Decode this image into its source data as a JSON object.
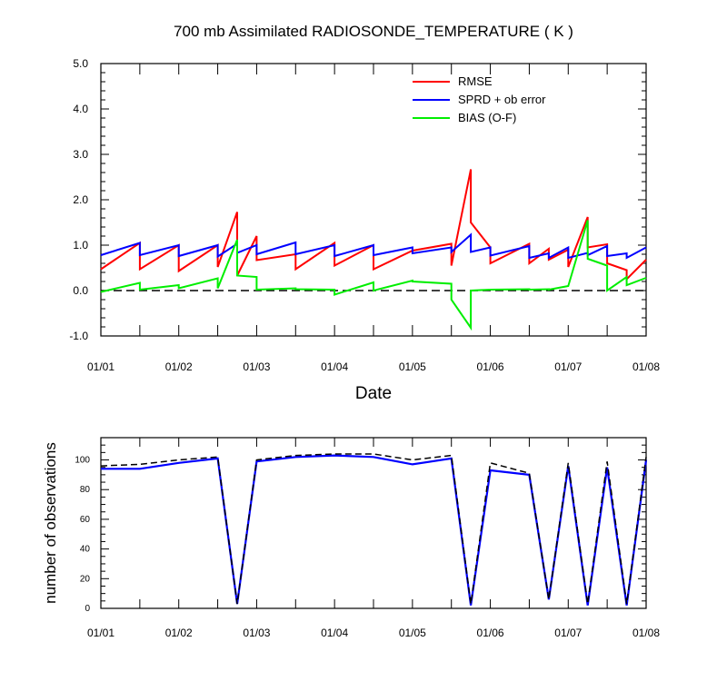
{
  "title": "700 mb Assimilated RADIOSONDE_TEMPERATURE ( K )",
  "colors": {
    "rmse": "#ff0000",
    "sprd": "#0000ff",
    "bias": "#00ee00",
    "ref": "#000000",
    "obs_possible": "#000000",
    "obs_used": "#0000ff"
  },
  "chart_data": [
    {
      "type": "line",
      "xlabel": "Date",
      "ylabel": "",
      "x_tick_labels": [
        "01/01",
        "01/02",
        "01/03",
        "01/04",
        "01/05",
        "01/06",
        "01/07",
        "01/08"
      ],
      "x_range": [
        0,
        7
      ],
      "ylim": [
        -1.0,
        5.0
      ],
      "y_tick_labels": [
        "-1.0",
        "0.0",
        "1.0",
        "2.0",
        "3.0",
        "4.0",
        "5.0"
      ],
      "legend_position": "top-right",
      "x": [
        0,
        0.5,
        0.5,
        1,
        1,
        1.5,
        1.5,
        1.75,
        1.75,
        2,
        2,
        2.5,
        2.5,
        3,
        3,
        3.5,
        3.5,
        4,
        4,
        4.5,
        4.5,
        4.75,
        4.75,
        5,
        5,
        5.5,
        5.5,
        5.75,
        5.75,
        6,
        6,
        6.25,
        6.25,
        6.5,
        6.5,
        6.75,
        6.75,
        7
      ],
      "series": [
        {
          "name": "RMSE",
          "values": [
            0.47,
            1.05,
            0.47,
            1.0,
            0.43,
            1.0,
            0.52,
            1.73,
            0.33,
            1.2,
            0.67,
            0.8,
            0.47,
            1.05,
            0.55,
            1.0,
            0.47,
            0.88,
            0.88,
            1.03,
            0.55,
            2.67,
            1.5,
            0.95,
            0.6,
            1.03,
            0.6,
            0.92,
            0.68,
            0.9,
            0.52,
            1.62,
            0.95,
            1.02,
            0.6,
            0.45,
            0.25,
            0.68
          ]
        },
        {
          "name": "SPRD + ob error",
          "values": [
            0.78,
            1.05,
            0.78,
            1.0,
            0.76,
            1.0,
            0.75,
            1.03,
            0.83,
            1.0,
            0.8,
            1.06,
            0.8,
            1.0,
            0.76,
            1.0,
            0.78,
            0.95,
            0.82,
            0.95,
            0.85,
            1.23,
            0.85,
            0.95,
            0.77,
            0.98,
            0.72,
            0.82,
            0.72,
            0.95,
            0.72,
            0.83,
            0.78,
            0.98,
            0.76,
            0.82,
            0.72,
            0.95
          ]
        },
        {
          "name": "BIAS (O-F)",
          "values": [
            -0.03,
            0.17,
            0.02,
            0.12,
            0.05,
            0.27,
            0.05,
            1.12,
            0.33,
            0.3,
            0.02,
            0.05,
            0.03,
            0.02,
            -0.09,
            0.18,
            0.0,
            0.22,
            0.2,
            0.15,
            -0.2,
            -0.82,
            0.0,
            0.02,
            0.02,
            0.03,
            0.02,
            0.03,
            0.02,
            0.1,
            0.1,
            1.55,
            0.7,
            0.55,
            0.0,
            0.3,
            0.12,
            0.28
          ]
        }
      ]
    },
    {
      "type": "line",
      "xlabel": "",
      "ylabel": "number of observations",
      "x_tick_labels": [
        "01/01",
        "01/02",
        "01/03",
        "01/04",
        "01/05",
        "01/06",
        "01/07",
        "01/08"
      ],
      "x_range": [
        0,
        7
      ],
      "ylim": [
        0,
        115
      ],
      "y_tick_labels": [
        "0",
        "20",
        "40",
        "60",
        "80",
        "100"
      ],
      "x": [
        0,
        0.5,
        1,
        1.5,
        1.75,
        2,
        2.5,
        3,
        3.5,
        4,
        4.5,
        4.75,
        5,
        5.5,
        5.75,
        6,
        6.25,
        6.5,
        6.75,
        7
      ],
      "series": [
        {
          "style": "dashed",
          "values": [
            96,
            97,
            100,
            102,
            3,
            100,
            103,
            104,
            104,
            100,
            103,
            3,
            98,
            91,
            6,
            98,
            3,
            99,
            3,
            102
          ]
        },
        {
          "style": "solid",
          "values": [
            94,
            94,
            98,
            101,
            3,
            99,
            102,
            103,
            102,
            97,
            101,
            2,
            93,
            90,
            6,
            96,
            2,
            95,
            2,
            100
          ]
        }
      ]
    }
  ]
}
